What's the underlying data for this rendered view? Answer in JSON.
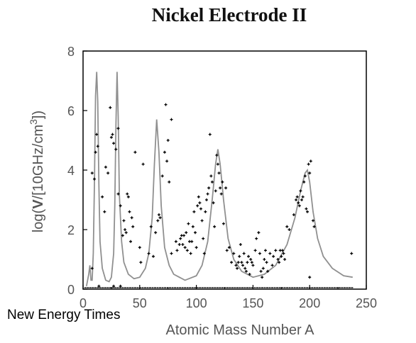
{
  "credit": "New Energy Times",
  "colors": {
    "curve": "#909090",
    "points": "#000000",
    "frame": "#000000",
    "text": "#555555"
  },
  "chart_data": {
    "type": "scatter",
    "title": "Nickel Electrode II",
    "xlabel": "Atomic Mass Number A",
    "ylabel": "log(V/[10GHz/cm3])",
    "xlim": [
      0,
      250
    ],
    "ylim": [
      0,
      8
    ],
    "xticks": [
      "0",
      "50",
      "100",
      "150",
      "200",
      "250"
    ],
    "yticks": [
      "0",
      "2",
      "4",
      "6",
      "8"
    ],
    "grid": false,
    "series": [
      {
        "role": "theory-curve",
        "points": [
          [
            3,
            0.1
          ],
          [
            5,
            0.5
          ],
          [
            6,
            0.8
          ],
          [
            7,
            0.3
          ],
          [
            8,
            0.3
          ],
          [
            9,
            1.2
          ],
          [
            10,
            3.5
          ],
          [
            11,
            6.5
          ],
          [
            12,
            7.3
          ],
          [
            13,
            6.3
          ],
          [
            14,
            3.5
          ],
          [
            15,
            1.6
          ],
          [
            17,
            0.7
          ],
          [
            20,
            0.3
          ],
          [
            23,
            0.25
          ],
          [
            25,
            0.4
          ],
          [
            27,
            1.2
          ],
          [
            28,
            2.8
          ],
          [
            29,
            5.5
          ],
          [
            30,
            7.3
          ],
          [
            31,
            5.8
          ],
          [
            32,
            3.2
          ],
          [
            34,
            1.6
          ],
          [
            36,
            0.9
          ],
          [
            40,
            0.5
          ],
          [
            45,
            0.35
          ],
          [
            50,
            0.4
          ],
          [
            55,
            0.7
          ],
          [
            58,
            1.2
          ],
          [
            61,
            2.4
          ],
          [
            63,
            4.2
          ],
          [
            65,
            5.7
          ],
          [
            67,
            4.6
          ],
          [
            69,
            2.8
          ],
          [
            72,
            1.4
          ],
          [
            76,
            0.8
          ],
          [
            80,
            0.5
          ],
          [
            90,
            0.3
          ],
          [
            100,
            0.45
          ],
          [
            105,
            0.8
          ],
          [
            110,
            1.6
          ],
          [
            114,
            3.0
          ],
          [
            117,
            4.2
          ],
          [
            119,
            4.7
          ],
          [
            121,
            4.2
          ],
          [
            124,
            3.0
          ],
          [
            128,
            1.7
          ],
          [
            133,
            1.0
          ],
          [
            140,
            0.6
          ],
          [
            150,
            0.4
          ],
          [
            160,
            0.5
          ],
          [
            170,
            0.8
          ],
          [
            180,
            1.5
          ],
          [
            187,
            2.4
          ],
          [
            192,
            3.3
          ],
          [
            196,
            3.9
          ],
          [
            198,
            4.0
          ],
          [
            200,
            3.6
          ],
          [
            203,
            2.6
          ],
          [
            207,
            1.7
          ],
          [
            212,
            1.1
          ],
          [
            220,
            0.7
          ],
          [
            230,
            0.45
          ],
          [
            238,
            0.4
          ]
        ]
      },
      {
        "role": "measured-points",
        "points": [
          [
            8,
            0.7
          ],
          [
            8,
            3.9
          ],
          [
            10,
            3.7
          ],
          [
            11,
            4.6
          ],
          [
            12,
            5.2
          ],
          [
            13,
            4.8
          ],
          [
            14,
            0.1
          ],
          [
            17,
            3.1
          ],
          [
            19,
            2.6
          ],
          [
            20,
            4.1
          ],
          [
            22,
            3.9
          ],
          [
            24,
            6.1
          ],
          [
            25,
            5.1
          ],
          [
            26,
            5.2
          ],
          [
            27,
            4.9
          ],
          [
            27,
            0.1
          ],
          [
            29,
            4.7
          ],
          [
            31,
            5.4
          ],
          [
            31,
            3.2
          ],
          [
            33,
            2.8
          ],
          [
            33,
            0.1
          ],
          [
            35,
            1.8
          ],
          [
            36,
            2.3
          ],
          [
            37,
            2.0
          ],
          [
            38,
            1.9
          ],
          [
            39,
            3.2
          ],
          [
            40,
            3.1
          ],
          [
            41,
            2.6
          ],
          [
            42,
            1.6
          ],
          [
            43,
            2.4
          ],
          [
            44,
            2.1
          ],
          [
            46,
            4.6
          ],
          [
            50,
            1.4
          ],
          [
            51,
            0.9
          ],
          [
            53,
            4.2
          ],
          [
            58,
            1.2
          ],
          [
            60,
            2.1
          ],
          [
            62,
            1.1
          ],
          [
            64,
            1.9
          ],
          [
            66,
            2.3
          ],
          [
            67,
            2.5
          ],
          [
            68,
            2.4
          ],
          [
            70,
            3.8
          ],
          [
            72,
            4.6
          ],
          [
            73,
            6.2
          ],
          [
            74,
            4.3
          ],
          [
            75,
            5.0
          ],
          [
            76,
            3.6
          ],
          [
            78,
            5.7
          ],
          [
            78,
            1.2
          ],
          [
            82,
            1.6
          ],
          [
            83,
            1.3
          ],
          [
            85,
            1.5
          ],
          [
            86,
            1.7
          ],
          [
            87,
            1.8
          ],
          [
            88,
            1.5
          ],
          [
            89,
            1.8
          ],
          [
            90,
            1.4
          ],
          [
            91,
            1.9
          ],
          [
            92,
            1.3
          ],
          [
            93,
            2.2
          ],
          [
            94,
            1.6
          ],
          [
            95,
            1.2
          ],
          [
            96,
            1.6
          ],
          [
            97,
            2.1
          ],
          [
            98,
            2.6
          ],
          [
            99,
            1.9
          ],
          [
            100,
            1.4
          ],
          [
            101,
            2.8
          ],
          [
            102,
            3.1
          ],
          [
            103,
            2.9
          ],
          [
            104,
            2.7
          ],
          [
            105,
            2.3
          ],
          [
            106,
            1.7
          ],
          [
            107,
            1.2
          ],
          [
            108,
            2.6
          ],
          [
            109,
            3.0
          ],
          [
            110,
            3.2
          ],
          [
            111,
            3.4
          ],
          [
            112,
            5.2
          ],
          [
            113,
            3.8
          ],
          [
            114,
            3.6
          ],
          [
            115,
            2.9
          ],
          [
            116,
            2.1
          ],
          [
            117,
            3.3
          ],
          [
            118,
            4.5
          ],
          [
            119,
            4.2
          ],
          [
            120,
            3.9
          ],
          [
            121,
            3.4
          ],
          [
            122,
            3.2
          ],
          [
            123,
            3.6
          ],
          [
            124,
            2.2
          ],
          [
            126,
            3.4
          ],
          [
            127,
            1.3
          ],
          [
            129,
            1.4
          ],
          [
            131,
            0.9
          ],
          [
            133,
            1.2
          ],
          [
            135,
            0.8
          ],
          [
            136,
            0.7
          ],
          [
            137,
            0.9
          ],
          [
            138,
            1.1
          ],
          [
            139,
            1.5
          ],
          [
            140,
            0.9
          ],
          [
            141,
            0.8
          ],
          [
            142,
            1.2
          ],
          [
            143,
            0.7
          ],
          [
            144,
            0.6
          ],
          [
            145,
            0.9
          ],
          [
            146,
            1.1
          ],
          [
            147,
            0.5
          ],
          [
            148,
            1.0
          ],
          [
            149,
            0.9
          ],
          [
            150,
            0.8
          ],
          [
            152,
            1.3
          ],
          [
            153,
            1.7
          ],
          [
            155,
            1.9
          ],
          [
            156,
            1.2
          ],
          [
            157,
            0.6
          ],
          [
            158,
            0.4
          ],
          [
            159,
            0.7
          ],
          [
            160,
            1.0
          ],
          [
            161,
            1.3
          ],
          [
            162,
            0.9
          ],
          [
            163,
            0.6
          ],
          [
            165,
            1.2
          ],
          [
            167,
            0.8
          ],
          [
            168,
            1.1
          ],
          [
            170,
            1.3
          ],
          [
            172,
            1.0
          ],
          [
            173,
            0.9
          ],
          [
            174,
            1.3
          ],
          [
            175,
            1.1
          ],
          [
            176,
            1.3
          ],
          [
            177,
            1.2
          ],
          [
            178,
            1.0
          ],
          [
            180,
            2.1
          ],
          [
            182,
            2.0
          ],
          [
            186,
            2.5
          ],
          [
            188,
            3.0
          ],
          [
            189,
            3.1
          ],
          [
            190,
            2.9
          ],
          [
            191,
            2.8
          ],
          [
            192,
            3.3
          ],
          [
            193,
            3.0
          ],
          [
            194,
            3.1
          ],
          [
            195,
            3.6
          ],
          [
            196,
            3.8
          ],
          [
            197,
            2.7
          ],
          [
            198,
            2.6
          ],
          [
            199,
            4.2
          ],
          [
            200,
            0.4
          ],
          [
            200,
            3.9
          ],
          [
            201,
            4.3
          ],
          [
            203,
            2.3
          ],
          [
            204,
            2.1
          ],
          [
            237,
            1.2
          ]
        ]
      }
    ]
  }
}
